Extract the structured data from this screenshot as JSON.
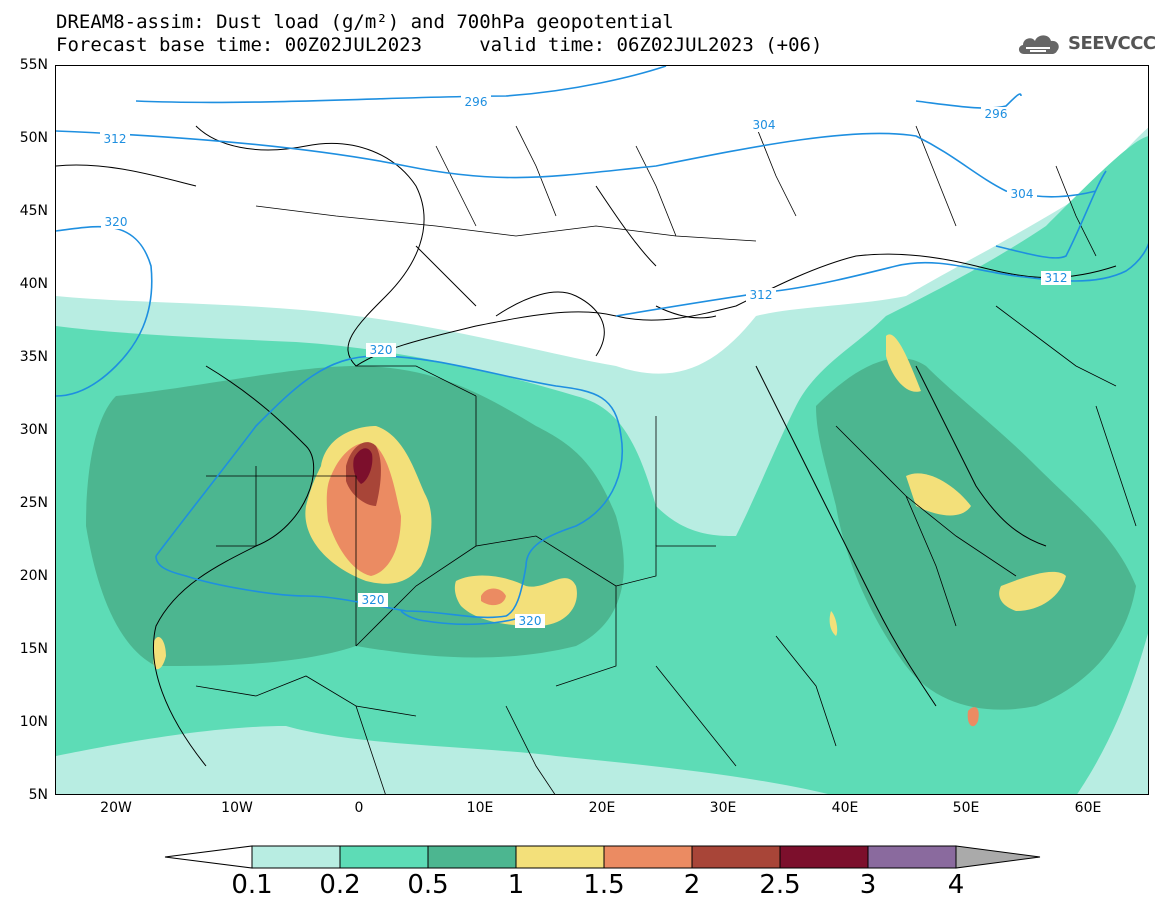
{
  "header": {
    "line1": "DREAM8-assim: Dust load (g/m²) and 700hPa geopotential",
    "line2": "Forecast base time: 00Z02JUL2023     valid time: 06Z02JUL2023 (+06)",
    "logo_text": "SEEVCCC"
  },
  "axes": {
    "lat_labels": [
      "55N",
      "50N",
      "45N",
      "40N",
      "35N",
      "30N",
      "25N",
      "20N",
      "15N",
      "10N",
      "5N"
    ],
    "lon_labels": [
      "20W",
      "10W",
      "0",
      "10E",
      "20E",
      "30E",
      "40E",
      "50E",
      "60E"
    ]
  },
  "contour_labels": [
    "296",
    "304",
    "312",
    "320",
    "296",
    "304",
    "312",
    "312",
    "320",
    "320",
    "320"
  ],
  "legend": {
    "labels": [
      "0.1",
      "0.2",
      "0.5",
      "1",
      "1.5",
      "2",
      "2.5",
      "3",
      "4"
    ],
    "colors": [
      "#b8ede2",
      "#5ddcb6",
      "#4cb690",
      "#f3e07a",
      "#eb8b62",
      "#a84538",
      "#7c0f2c",
      "#8a6a9e",
      "#aaaaaa"
    ]
  },
  "colors": {
    "contour": "#1e8fe0",
    "dust_low": "#b8ede2",
    "dust_mid": "#5ddcb6",
    "dust_high": "#4cb690"
  }
}
